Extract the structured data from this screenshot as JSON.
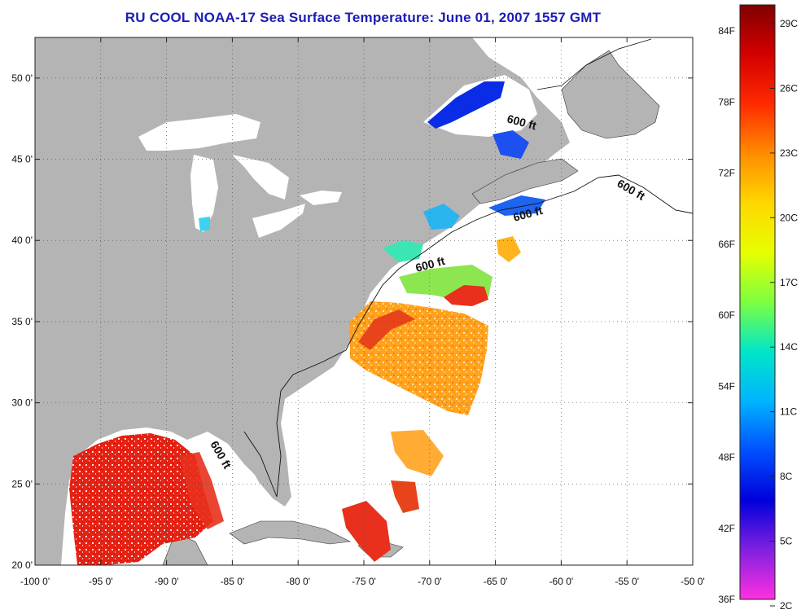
{
  "title": "RU COOL  NOAA-17  Sea Surface Temperature:  June 01, 2007 1557 GMT",
  "map": {
    "x_ticks": [
      {
        "lon": -100,
        "label": "-100 0'"
      },
      {
        "lon": -95,
        "label": "-95 0'"
      },
      {
        "lon": -90,
        "label": "-90 0'"
      },
      {
        "lon": -85,
        "label": "-85 0'"
      },
      {
        "lon": -80,
        "label": "-80 0'"
      },
      {
        "lon": -75,
        "label": "-75 0'"
      },
      {
        "lon": -70,
        "label": "-70 0'"
      },
      {
        "lon": -65,
        "label": "-65 0'"
      },
      {
        "lon": -60,
        "label": "-60 0'"
      },
      {
        "lon": -55,
        "label": "-55 0'"
      },
      {
        "lon": -50,
        "label": "-50 0'"
      }
    ],
    "y_ticks": [
      {
        "lat": 50,
        "label": "50 0'"
      },
      {
        "lat": 45,
        "label": "45 0'"
      },
      {
        "lat": 40,
        "label": "40 0'"
      },
      {
        "lat": 35,
        "label": "35 0'"
      },
      {
        "lat": 30,
        "label": "30 0'"
      },
      {
        "lat": 25,
        "label": "25 0'"
      },
      {
        "lat": 20,
        "label": "20 0'"
      }
    ],
    "lon_range": [
      -100,
      -50
    ],
    "lat_range": [
      20,
      52.5
    ],
    "land_color": "#b4b4b4",
    "water_color": "#ffffff",
    "depth_contour_label": "600 ft",
    "depth_labels": [
      "600 ft",
      "600 ft",
      "600 ft",
      "600 ft",
      "600 ft"
    ]
  },
  "colorbar": {
    "fahrenheit_labels": [
      "84F",
      "78F",
      "72F",
      "66F",
      "60F",
      "54F",
      "48F",
      "42F",
      "36F"
    ],
    "celsius_labels": [
      "29C",
      "26C",
      "23C",
      "20C",
      "17C",
      "14C",
      "11C",
      "8C",
      "5C",
      "2C"
    ],
    "colors_top_to_bottom": [
      "#800000",
      "#d40000",
      "#ff2a00",
      "#ff8c00",
      "#ffd700",
      "#e6ff00",
      "#7dff40",
      "#00e6c8",
      "#00b4ff",
      "#0050ff",
      "#0000dc",
      "#8020e0",
      "#ff30e0"
    ]
  }
}
